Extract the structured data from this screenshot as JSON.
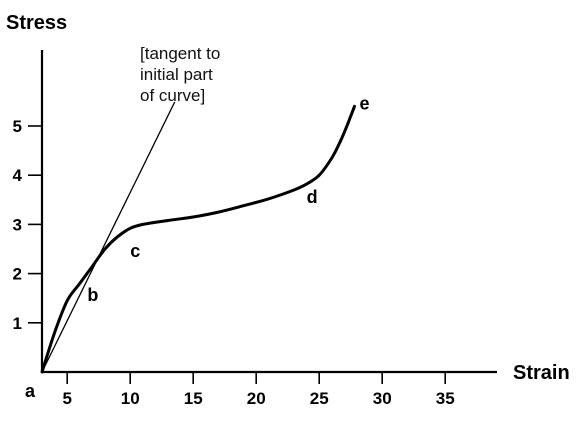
{
  "chart_data": {
    "type": "line",
    "title": "",
    "xlabel": "Strain",
    "ylabel": "Stress",
    "xlim": [
      3,
      38
    ],
    "ylim": [
      0,
      6
    ],
    "grid": false,
    "x_ticks": [
      5,
      10,
      15,
      20,
      25,
      30,
      35
    ],
    "y_ticks": [
      1,
      2,
      3,
      4,
      5
    ],
    "x_tick_labels": [
      "5",
      "10",
      "15",
      "20",
      "25",
      "30",
      "35"
    ],
    "y_tick_labels": [
      "1",
      "2",
      "3",
      "4",
      "5"
    ],
    "series": [
      {
        "x": [
          3,
          4,
          5,
          6,
          7,
          8,
          9,
          10,
          11,
          13,
          15,
          17,
          19,
          21,
          23,
          24,
          25,
          26,
          26.7,
          27.2,
          27.5,
          27.8
        ],
        "y": [
          0,
          0.8,
          1.45,
          1.8,
          2.15,
          2.5,
          2.75,
          2.92,
          3.0,
          3.08,
          3.15,
          3.25,
          3.38,
          3.52,
          3.7,
          3.82,
          4.0,
          4.35,
          4.7,
          5.0,
          5.2,
          5.4
        ]
      },
      {
        "type": "tangent",
        "x": [
          3,
          12.5
        ],
        "y": [
          0,
          5.0
        ]
      }
    ],
    "points": [
      {
        "label": "a",
        "x": 3,
        "y": 0
      },
      {
        "label": "b",
        "x": 6.6,
        "y": 1.5
      },
      {
        "label": "c",
        "x": 10,
        "y": 2.4
      },
      {
        "label": "d",
        "x": 24,
        "y": 3.5
      },
      {
        "label": "e",
        "x": 28.2,
        "y": 5.4
      }
    ],
    "annotations": [
      {
        "lines": [
          "[tangent to",
          "initial part",
          "of curve]"
        ]
      }
    ]
  }
}
